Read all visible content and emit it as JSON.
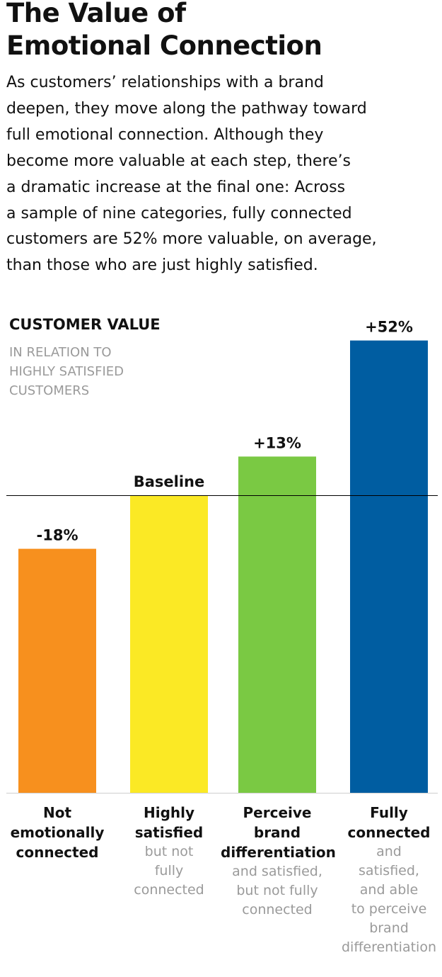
{
  "title_lines": [
    "The Value of",
    "Emotional Connection"
  ],
  "description_lines": [
    "As customers’ relationships with a brand",
    "deepen, they move along the pathway toward",
    "full emotional connection. Although they",
    "become more valuable at each step, there’s",
    "a dramatic increase at the final one: Across",
    "a sample of nine categories, fully connected",
    "customers are 52% more valuable, on average,",
    "than those who are just highly satisfied."
  ],
  "chart_data": {
    "type": "bar",
    "title": "CUSTOMER VALUE",
    "subtitle_lines": [
      "IN RELATION TO",
      "HIGHLY SATISFIED",
      "CUSTOMERS"
    ],
    "baseline_value": 0,
    "ylim": [
      -100,
      52
    ],
    "categories": [
      {
        "main_lines": [
          "Not",
          "emotionally",
          "connected"
        ],
        "sub_lines": []
      },
      {
        "main_lines": [
          "Highly",
          "satisfied"
        ],
        "sub_lines": [
          "but not",
          "fully",
          "connected"
        ]
      },
      {
        "main_lines": [
          "Perceive",
          "brand",
          "differentiation"
        ],
        "sub_lines": [
          "and satisfied,",
          "but not fully",
          "connected"
        ]
      },
      {
        "main_lines": [
          "Fully",
          "connected"
        ],
        "sub_lines": [
          "and",
          "satisfied,",
          "and able",
          "to perceive",
          "brand",
          "differentiation"
        ]
      }
    ],
    "values": [
      -18,
      0,
      13,
      52
    ],
    "value_labels": [
      "-18%",
      "Baseline",
      "+13%",
      "+52%"
    ],
    "colors": [
      "#F7901E",
      "#FBE925",
      "#7AC943",
      "#005DA1"
    ]
  }
}
